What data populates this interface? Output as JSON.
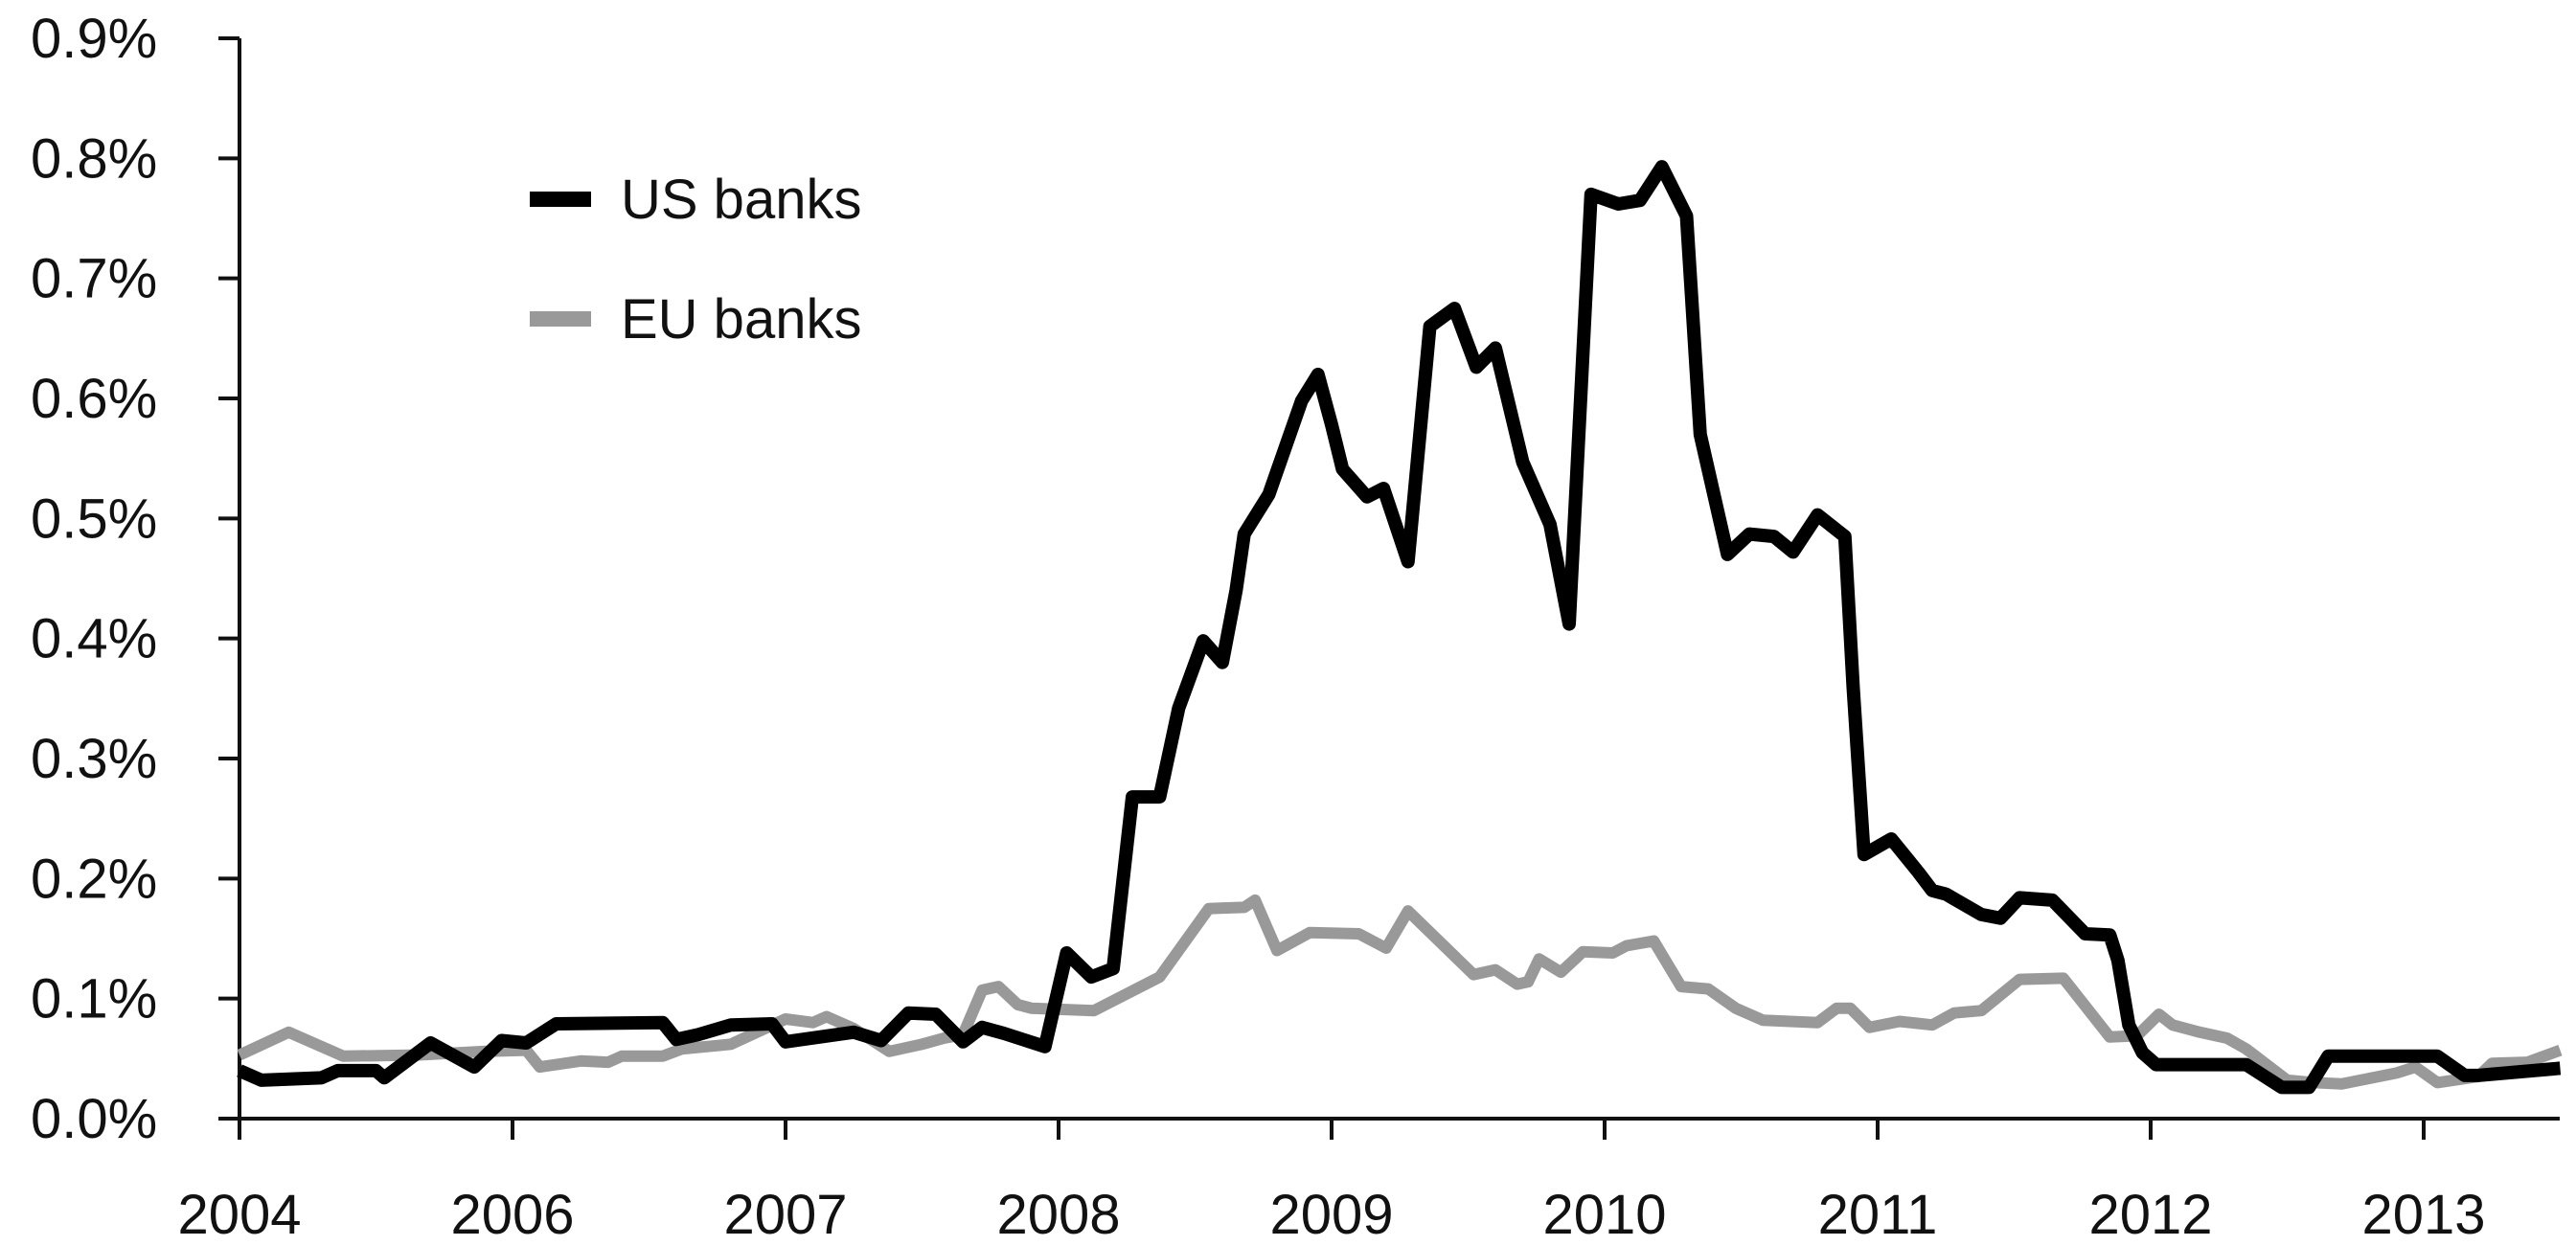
{
  "chart_data": {
    "type": "line",
    "title": "",
    "xlabel": "",
    "ylabel": "",
    "x_tick_labels": [
      "2004",
      "2006",
      "2007",
      "2008",
      "2009",
      "2010",
      "2011",
      "2012",
      "2013"
    ],
    "y_tick_labels": [
      "0.0%",
      "0.1%",
      "0.2%",
      "0.3%",
      "0.4%",
      "0.5%",
      "0.6%",
      "0.7%",
      "0.8%",
      "0.9%"
    ],
    "ylim": [
      0,
      0.9
    ],
    "y_unit": "%",
    "grid": false,
    "legend_position": "top-left",
    "series": [
      {
        "name": "US banks",
        "color": "#000000",
        "points": [
          [
            0.0,
            0.04
          ],
          [
            0.08,
            0.032
          ],
          [
            0.3,
            0.034
          ],
          [
            0.36,
            0.04
          ],
          [
            0.5,
            0.04
          ],
          [
            0.53,
            0.034
          ],
          [
            0.7,
            0.063
          ],
          [
            0.86,
            0.043
          ],
          [
            0.96,
            0.065
          ],
          [
            1.05,
            0.063
          ],
          [
            1.16,
            0.079
          ],
          [
            1.55,
            0.08
          ],
          [
            1.6,
            0.066
          ],
          [
            1.68,
            0.07
          ],
          [
            1.8,
            0.078
          ],
          [
            1.95,
            0.079
          ],
          [
            2.0,
            0.064
          ],
          [
            2.25,
            0.072
          ],
          [
            2.35,
            0.065
          ],
          [
            2.45,
            0.088
          ],
          [
            2.55,
            0.087
          ],
          [
            2.65,
            0.064
          ],
          [
            2.72,
            0.076
          ],
          [
            2.8,
            0.071
          ],
          [
            2.95,
            0.06
          ],
          [
            3.03,
            0.138
          ],
          [
            3.12,
            0.118
          ],
          [
            3.2,
            0.125
          ],
          [
            3.27,
            0.268
          ],
          [
            3.37,
            0.268
          ],
          [
            3.44,
            0.342
          ],
          [
            3.53,
            0.398
          ],
          [
            3.6,
            0.38
          ],
          [
            3.65,
            0.44
          ],
          [
            3.68,
            0.487
          ],
          [
            3.77,
            0.52
          ],
          [
            3.89,
            0.598
          ],
          [
            3.95,
            0.62
          ],
          [
            4.0,
            0.578
          ],
          [
            4.04,
            0.541
          ],
          [
            4.13,
            0.518
          ],
          [
            4.19,
            0.525
          ],
          [
            4.28,
            0.464
          ],
          [
            4.36,
            0.66
          ],
          [
            4.45,
            0.675
          ],
          [
            4.53,
            0.626
          ],
          [
            4.6,
            0.642
          ],
          [
            4.7,
            0.547
          ],
          [
            4.8,
            0.495
          ],
          [
            4.87,
            0.412
          ],
          [
            4.95,
            0.77
          ],
          [
            5.05,
            0.762
          ],
          [
            5.13,
            0.765
          ],
          [
            5.21,
            0.793
          ],
          [
            5.3,
            0.752
          ],
          [
            5.35,
            0.57
          ],
          [
            5.45,
            0.47
          ],
          [
            5.53,
            0.487
          ],
          [
            5.62,
            0.485
          ],
          [
            5.69,
            0.472
          ],
          [
            5.78,
            0.503
          ],
          [
            5.88,
            0.485
          ],
          [
            5.91,
            0.36
          ],
          [
            5.95,
            0.22
          ],
          [
            6.05,
            0.233
          ],
          [
            6.15,
            0.205
          ],
          [
            6.2,
            0.19
          ],
          [
            6.25,
            0.187
          ],
          [
            6.38,
            0.17
          ],
          [
            6.45,
            0.167
          ],
          [
            6.52,
            0.184
          ],
          [
            6.64,
            0.182
          ],
          [
            6.76,
            0.154
          ],
          [
            6.85,
            0.153
          ],
          [
            6.88,
            0.132
          ],
          [
            6.92,
            0.078
          ],
          [
            6.97,
            0.055
          ],
          [
            7.02,
            0.045
          ],
          [
            7.35,
            0.045
          ],
          [
            7.48,
            0.026
          ],
          [
            7.58,
            0.026
          ],
          [
            7.65,
            0.052
          ],
          [
            8.05,
            0.052
          ],
          [
            8.15,
            0.036
          ],
          [
            8.2,
            0.036
          ],
          [
            8.5,
            0.042
          ]
        ]
      },
      {
        "name": "EU banks",
        "color": "#999999",
        "points": [
          [
            0.0,
            0.053
          ],
          [
            0.18,
            0.072
          ],
          [
            0.38,
            0.052
          ],
          [
            0.65,
            0.053
          ],
          [
            0.9,
            0.056
          ],
          [
            1.05,
            0.057
          ],
          [
            1.1,
            0.043
          ],
          [
            1.25,
            0.048
          ],
          [
            1.35,
            0.047
          ],
          [
            1.4,
            0.052
          ],
          [
            1.55,
            0.052
          ],
          [
            1.62,
            0.058
          ],
          [
            1.8,
            0.062
          ],
          [
            2.0,
            0.083
          ],
          [
            2.1,
            0.08
          ],
          [
            2.15,
            0.085
          ],
          [
            2.25,
            0.075
          ],
          [
            2.38,
            0.056
          ],
          [
            2.5,
            0.062
          ],
          [
            2.58,
            0.067
          ],
          [
            2.65,
            0.07
          ],
          [
            2.72,
            0.107
          ],
          [
            2.78,
            0.11
          ],
          [
            2.85,
            0.095
          ],
          [
            2.9,
            0.092
          ],
          [
            3.13,
            0.09
          ],
          [
            3.37,
            0.118
          ],
          [
            3.55,
            0.175
          ],
          [
            3.68,
            0.176
          ],
          [
            3.72,
            0.182
          ],
          [
            3.8,
            0.14
          ],
          [
            3.92,
            0.155
          ],
          [
            4.1,
            0.154
          ],
          [
            4.2,
            0.142
          ],
          [
            4.28,
            0.173
          ],
          [
            4.52,
            0.12
          ],
          [
            4.6,
            0.124
          ],
          [
            4.68,
            0.112
          ],
          [
            4.72,
            0.114
          ],
          [
            4.76,
            0.133
          ],
          [
            4.84,
            0.122
          ],
          [
            4.92,
            0.139
          ],
          [
            5.03,
            0.138
          ],
          [
            5.08,
            0.144
          ],
          [
            5.18,
            0.148
          ],
          [
            5.28,
            0.11
          ],
          [
            5.38,
            0.108
          ],
          [
            5.48,
            0.092
          ],
          [
            5.58,
            0.082
          ],
          [
            5.78,
            0.08
          ],
          [
            5.85,
            0.092
          ],
          [
            5.9,
            0.092
          ],
          [
            5.97,
            0.076
          ],
          [
            6.08,
            0.081
          ],
          [
            6.2,
            0.078
          ],
          [
            6.28,
            0.088
          ],
          [
            6.38,
            0.09
          ],
          [
            6.52,
            0.116
          ],
          [
            6.68,
            0.117
          ],
          [
            6.85,
            0.068
          ],
          [
            6.95,
            0.069
          ],
          [
            7.03,
            0.087
          ],
          [
            7.08,
            0.078
          ],
          [
            7.18,
            0.072
          ],
          [
            7.28,
            0.067
          ],
          [
            7.35,
            0.058
          ],
          [
            7.5,
            0.032
          ],
          [
            7.6,
            0.03
          ],
          [
            7.7,
            0.029
          ],
          [
            7.9,
            0.038
          ],
          [
            7.97,
            0.043
          ],
          [
            8.05,
            0.03
          ],
          [
            8.2,
            0.035
          ],
          [
            8.25,
            0.046
          ],
          [
            8.38,
            0.047
          ],
          [
            8.5,
            0.057
          ]
        ]
      }
    ]
  }
}
